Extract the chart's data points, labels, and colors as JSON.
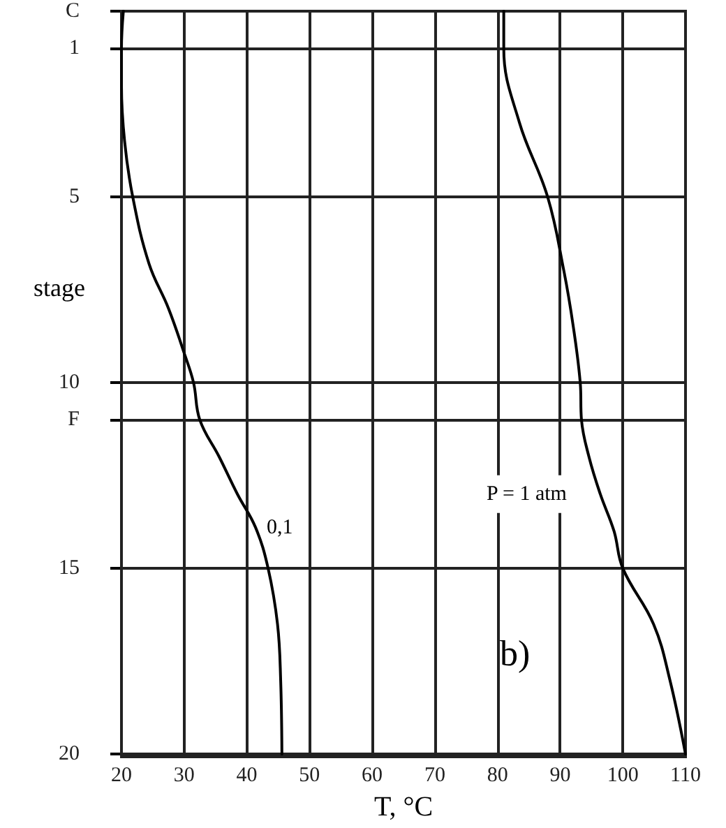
{
  "chart_data": {
    "type": "line",
    "xlabel": "T, °C",
    "ylabel": "stage",
    "xlim": [
      20,
      110
    ],
    "xticks": [
      20,
      30,
      40,
      50,
      60,
      70,
      80,
      90,
      100,
      110
    ],
    "ylim": [
      20,
      0
    ],
    "yticks": [
      {
        "value": 0,
        "label": "C"
      },
      1,
      5,
      10,
      {
        "value": 11,
        "label": "F"
      },
      15,
      20
    ],
    "grid": true,
    "marker": "none",
    "line_style": "solid",
    "legend": false,
    "annotations": [
      "b)"
    ],
    "series": [
      {
        "name": "0,1",
        "color": "#000000",
        "x": [
          20.3,
          20,
          20,
          20.5,
          21.8,
          24.4,
          27.5,
          30,
          31.5,
          32.5,
          35.6,
          38.5,
          41.4,
          43.4,
          44.9,
          45.4,
          45.6
        ],
        "values": [
          0,
          1,
          2,
          3.5,
          5,
          6.8,
          8,
          9.2,
          10,
          11,
          12,
          13,
          13.9,
          15,
          16.5,
          18,
          20
        ]
      },
      {
        "name": "P = 1 atm",
        "color": "#000000",
        "x": [
          81,
          81,
          83.5,
          88,
          90.6,
          92.1,
          93.2,
          93.4,
          94.6,
          96.4,
          98.6,
          100,
          104.9,
          107.5,
          110
        ],
        "values": [
          0,
          1,
          3,
          5,
          7,
          8.5,
          10,
          11,
          12,
          13,
          14,
          15,
          16.5,
          18,
          20
        ]
      }
    ]
  }
}
